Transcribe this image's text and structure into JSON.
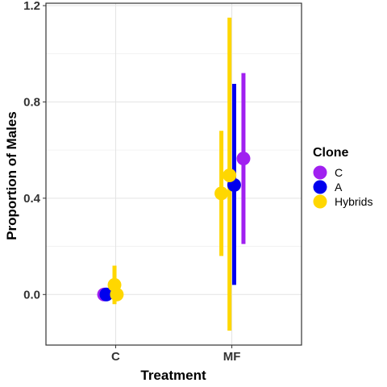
{
  "chart_data": {
    "type": "scatter",
    "xlabel": "Treatment",
    "ylabel": "Proportion of Males",
    "categories": [
      "C",
      "MF"
    ],
    "yticks": [
      "0.0",
      "0.4",
      "0.8",
      "1.2"
    ],
    "ylim": [
      -0.21,
      1.21
    ],
    "grid": true,
    "legend_title": "Clone",
    "legend_position": "right",
    "series": [
      {
        "name": "C",
        "color": "#A020F0",
        "points": [
          {
            "category": "C",
            "offset": -0.1,
            "y": 0.0,
            "lower": null,
            "upper": null
          },
          {
            "category": "MF",
            "offset": 0.1,
            "y": 0.565,
            "lower": 0.21,
            "upper": 0.92
          }
        ]
      },
      {
        "name": "A",
        "color": "#0000EE",
        "points": [
          {
            "category": "C",
            "offset": -0.08,
            "y": 0.0,
            "lower": null,
            "upper": null
          },
          {
            "category": "MF",
            "offset": 0.02,
            "y": 0.455,
            "lower": 0.04,
            "upper": 0.875
          }
        ]
      },
      {
        "name": "Hybrids",
        "color": "#FFD700",
        "points": [
          {
            "category": "C",
            "offset": -0.01,
            "y": 0.04,
            "lower": -0.04,
            "upper": 0.12
          },
          {
            "category": "C",
            "offset": 0.01,
            "y": 0.0,
            "lower": null,
            "upper": null
          },
          {
            "category": "MF",
            "offset": -0.09,
            "y": 0.42,
            "lower": 0.16,
            "upper": 0.68
          },
          {
            "category": "MF",
            "offset": -0.02,
            "y": 0.495,
            "lower": -0.15,
            "upper": 1.15
          }
        ]
      }
    ]
  }
}
